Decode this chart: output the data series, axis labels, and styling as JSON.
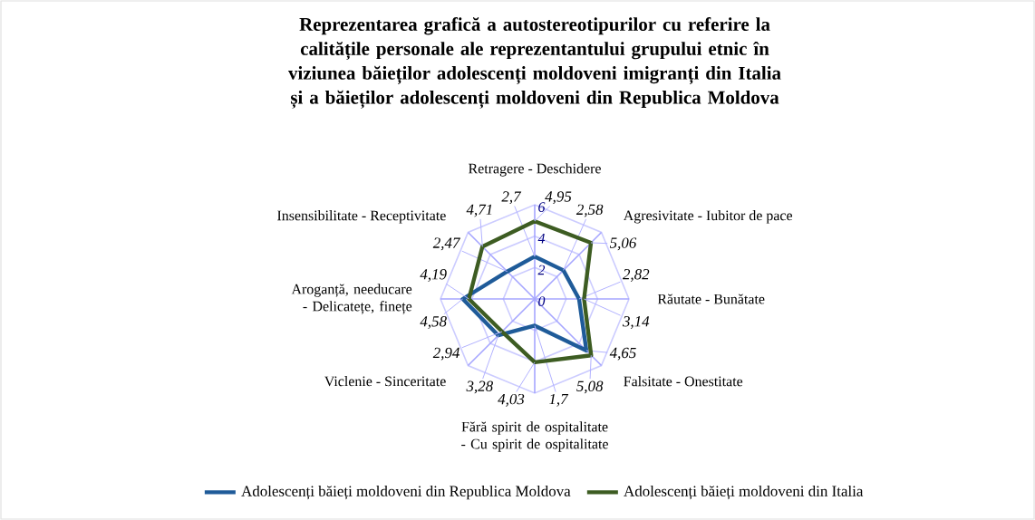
{
  "chart_data": {
    "type": "radar",
    "title": "Reprezentarea grafică a autostereotipurilor cu referire la calitățile personale ale reprezentantului grupului etnic în viziunea băieților adolescenți moldoveni imigranți din Italia și a băieților adolescenți moldoveni din Republica Moldova",
    "categories": [
      "Retragere - Deschidere",
      "Agresivitate - Iubitor de pace",
      "Răutate - Bunătate",
      "Falsitate - Onestitate",
      "Fără spirit de ospitalitate - Cu spirit de ospitalitate",
      "Viclenie - Sinceritate",
      "Aroganță, needucare - Delicatețe, finețe",
      "Insensibilitate - Receptivitate"
    ],
    "series": [
      {
        "name": "Adolescenți băieți moldoveni din Republica Moldova",
        "color": "#1f5b99",
        "values": [
          2.7,
          2.58,
          2.82,
          4.65,
          1.7,
          3.28,
          4.58,
          2.47
        ],
        "value_labels": [
          "2,7",
          "2,58",
          "2,82",
          "4,65",
          "1,7",
          "3,28",
          "4,58",
          "2,47"
        ]
      },
      {
        "name": "Adolescenți băieți moldoveni din Italia",
        "color": "#3d5c22",
        "values": [
          4.95,
          5.06,
          3.14,
          5.08,
          4.03,
          2.94,
          4.19,
          4.71
        ],
        "value_labels": [
          "4,95",
          "5,06",
          "3,14",
          "5,08",
          "4,03",
          "2,94",
          "4,19",
          "4,71"
        ]
      }
    ],
    "ylim": [
      0,
      6
    ],
    "yticks": [
      0,
      2,
      4,
      6
    ],
    "grid": true,
    "legend": "bottom",
    "marker": "none"
  }
}
